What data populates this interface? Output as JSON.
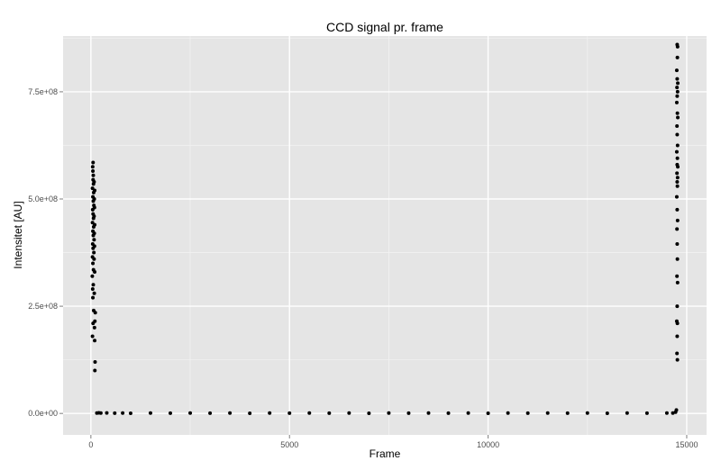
{
  "chart_data": {
    "type": "scatter",
    "title": "CCD signal pr. frame",
    "xlabel": "Frame",
    "ylabel": "Intensitet [AU]",
    "xlim": [
      -700,
      15500
    ],
    "ylim": [
      -50000000,
      880000000
    ],
    "xticks": [
      {
        "value": 0,
        "label": "0"
      },
      {
        "value": 5000,
        "label": "5000"
      },
      {
        "value": 10000,
        "label": "10000"
      },
      {
        "value": 15000,
        "label": "15000"
      }
    ],
    "yticks": [
      {
        "value": 0,
        "label": "0.0e+00"
      },
      {
        "value": 250000000,
        "label": "2.5e+08"
      },
      {
        "value": 500000000,
        "label": "5.0e+08"
      },
      {
        "value": 750000000,
        "label": "7.5e+08"
      }
    ],
    "grid": true,
    "colors": {
      "panel": "#e5e5e5",
      "grid_major": "#ffffff",
      "grid_minor": "#f2f2f2",
      "points": "#000000"
    },
    "series": [
      {
        "points": [
          [
            40,
            180000000
          ],
          [
            55,
            210000000
          ],
          [
            70,
            240000000
          ],
          [
            50,
            270000000
          ],
          [
            45,
            290000000
          ],
          [
            60,
            300000000
          ],
          [
            35,
            320000000
          ],
          [
            65,
            335000000
          ],
          [
            50,
            350000000
          ],
          [
            40,
            365000000
          ],
          [
            75,
            375000000
          ],
          [
            55,
            385000000
          ],
          [
            45,
            395000000
          ],
          [
            80,
            405000000
          ],
          [
            60,
            415000000
          ],
          [
            50,
            425000000
          ],
          [
            70,
            435000000
          ],
          [
            40,
            445000000
          ],
          [
            65,
            455000000
          ],
          [
            55,
            465000000
          ],
          [
            45,
            475000000
          ],
          [
            75,
            485000000
          ],
          [
            60,
            495000000
          ],
          [
            50,
            505000000
          ],
          [
            70,
            515000000
          ],
          [
            40,
            525000000
          ],
          [
            65,
            535000000
          ],
          [
            55,
            545000000
          ],
          [
            60,
            555000000
          ],
          [
            50,
            565000000
          ],
          [
            45,
            575000000
          ],
          [
            55,
            585000000
          ],
          [
            90,
            200000000
          ],
          [
            100,
            215000000
          ],
          [
            110,
            235000000
          ],
          [
            95,
            170000000
          ],
          [
            105,
            120000000
          ],
          [
            100,
            100000000
          ],
          [
            85,
            280000000
          ],
          [
            95,
            330000000
          ],
          [
            80,
            360000000
          ],
          [
            90,
            390000000
          ],
          [
            85,
            420000000
          ],
          [
            95,
            440000000
          ],
          [
            80,
            460000000
          ],
          [
            90,
            480000000
          ],
          [
            85,
            500000000
          ],
          [
            95,
            520000000
          ],
          [
            80,
            540000000
          ],
          [
            150,
            1000000
          ],
          [
            200,
            1500000
          ],
          [
            250,
            800000
          ],
          [
            400,
            1200000
          ],
          [
            600,
            700000
          ],
          [
            800,
            1000000
          ],
          [
            1000,
            500000
          ],
          [
            1500,
            900000
          ],
          [
            2000,
            600000
          ],
          [
            2500,
            800000
          ],
          [
            3000,
            700000
          ],
          [
            3500,
            900000
          ],
          [
            4000,
            500000
          ],
          [
            4500,
            800000
          ],
          [
            5000,
            600000
          ],
          [
            5500,
            900000
          ],
          [
            6000,
            700000
          ],
          [
            6500,
            800000
          ],
          [
            7000,
            500000
          ],
          [
            7500,
            900000
          ],
          [
            8000,
            600000
          ],
          [
            8500,
            800000
          ],
          [
            9000,
            700000
          ],
          [
            9500,
            900000
          ],
          [
            10000,
            500000
          ],
          [
            10500,
            800000
          ],
          [
            11000,
            600000
          ],
          [
            11500,
            900000
          ],
          [
            12000,
            700000
          ],
          [
            12500,
            800000
          ],
          [
            13000,
            500000
          ],
          [
            13500,
            900000
          ],
          [
            14000,
            600000
          ],
          [
            14500,
            800000
          ],
          [
            14650,
            1000000
          ],
          [
            14720,
            3000000
          ],
          [
            14740,
            8000000
          ],
          [
            14760,
            860000000
          ],
          [
            14770,
            855000000
          ],
          [
            14765,
            830000000
          ],
          [
            14750,
            800000000
          ],
          [
            14760,
            780000000
          ],
          [
            14775,
            770000000
          ],
          [
            14755,
            760000000
          ],
          [
            14770,
            750000000
          ],
          [
            14760,
            740000000
          ],
          [
            14750,
            725000000
          ],
          [
            14765,
            700000000
          ],
          [
            14775,
            690000000
          ],
          [
            14755,
            670000000
          ],
          [
            14760,
            650000000
          ],
          [
            14770,
            625000000
          ],
          [
            14750,
            610000000
          ],
          [
            14765,
            595000000
          ],
          [
            14760,
            580000000
          ],
          [
            14775,
            575000000
          ],
          [
            14755,
            560000000
          ],
          [
            14770,
            550000000
          ],
          [
            14760,
            540000000
          ],
          [
            14765,
            530000000
          ],
          [
            14750,
            505000000
          ],
          [
            14760,
            475000000
          ],
          [
            14770,
            450000000
          ],
          [
            14755,
            430000000
          ],
          [
            14760,
            395000000
          ],
          [
            14765,
            360000000
          ],
          [
            14755,
            320000000
          ],
          [
            14770,
            305000000
          ],
          [
            14760,
            250000000
          ],
          [
            14750,
            215000000
          ],
          [
            14765,
            210000000
          ],
          [
            14760,
            180000000
          ],
          [
            14755,
            140000000
          ],
          [
            14765,
            125000000
          ]
        ]
      }
    ]
  }
}
